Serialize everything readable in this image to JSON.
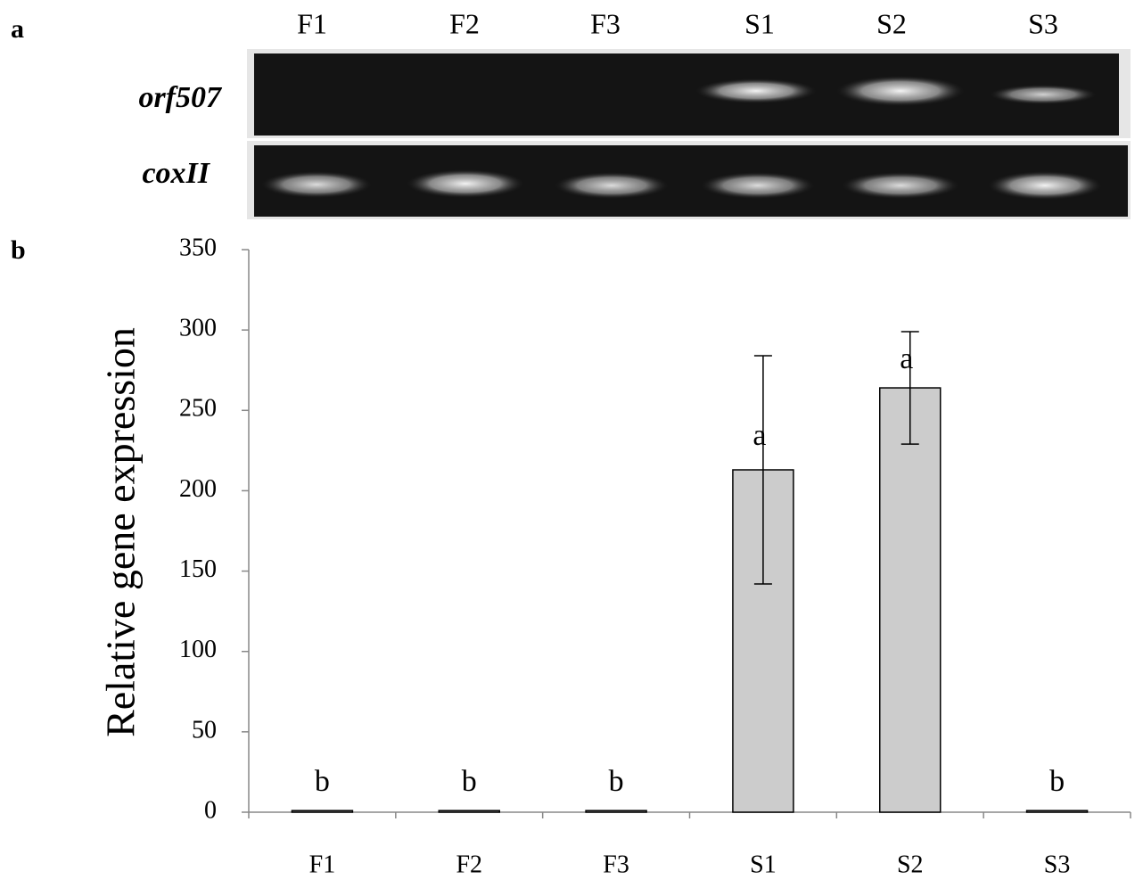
{
  "panel_a": {
    "label": "a",
    "lanes": [
      "F1",
      "F2",
      "F3",
      "S1",
      "S2",
      "S3"
    ],
    "rows": [
      "orf507",
      "coxII"
    ]
  },
  "chart_data": {
    "type": "bar",
    "panel_label": "b",
    "y_label": "Relative gene expression",
    "categories": [
      "F1",
      "F2",
      "F3",
      "S1",
      "S2",
      "S3"
    ],
    "values": [
      1,
      1,
      1,
      213,
      264,
      1
    ],
    "errors": [
      null,
      null,
      null,
      71,
      35,
      null
    ],
    "significance_labels": [
      "b",
      "b",
      "b",
      "a",
      "a",
      "b"
    ],
    "color": "#cccccc",
    "ylim": [
      0,
      350
    ],
    "yticks": [
      0,
      50,
      100,
      150,
      200,
      250,
      300,
      350
    ]
  }
}
